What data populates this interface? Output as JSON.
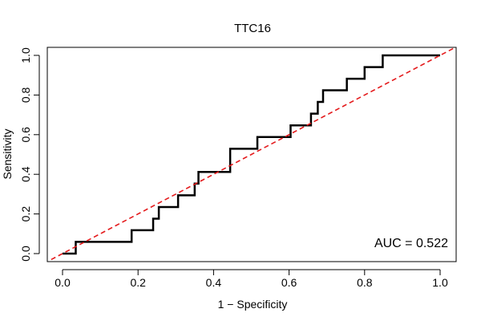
{
  "chart_data": {
    "type": "line",
    "title": "TTC16",
    "xlabel": "1 − Specificity",
    "ylabel": "Sensitivity",
    "xlim": [
      0,
      1
    ],
    "ylim": [
      0,
      1
    ],
    "x_ticks": [
      "0.0",
      "0.2",
      "0.4",
      "0.6",
      "0.8",
      "1.0"
    ],
    "y_ticks": [
      "0.0",
      "0.2",
      "0.4",
      "0.6",
      "0.8",
      "1.0"
    ],
    "grid": false,
    "annotation": "AUC = 0.522",
    "annotation_position": "bottom-right",
    "series": [
      {
        "style": "solid",
        "color": "#000000",
        "points": [
          [
            0.0,
            0.0
          ],
          [
            0.035,
            0.0
          ],
          [
            0.035,
            0.059
          ],
          [
            0.183,
            0.059
          ],
          [
            0.183,
            0.118
          ],
          [
            0.24,
            0.118
          ],
          [
            0.24,
            0.176
          ],
          [
            0.255,
            0.176
          ],
          [
            0.255,
            0.235
          ],
          [
            0.306,
            0.235
          ],
          [
            0.306,
            0.294
          ],
          [
            0.35,
            0.294
          ],
          [
            0.35,
            0.353
          ],
          [
            0.36,
            0.353
          ],
          [
            0.36,
            0.412
          ],
          [
            0.444,
            0.412
          ],
          [
            0.444,
            0.529
          ],
          [
            0.516,
            0.529
          ],
          [
            0.516,
            0.588
          ],
          [
            0.604,
            0.588
          ],
          [
            0.604,
            0.647
          ],
          [
            0.658,
            0.647
          ],
          [
            0.658,
            0.706
          ],
          [
            0.676,
            0.706
          ],
          [
            0.676,
            0.765
          ],
          [
            0.69,
            0.765
          ],
          [
            0.69,
            0.824
          ],
          [
            0.753,
            0.824
          ],
          [
            0.753,
            0.882
          ],
          [
            0.8,
            0.882
          ],
          [
            0.8,
            0.941
          ],
          [
            0.848,
            0.941
          ],
          [
            0.848,
            1.0
          ],
          [
            1.0,
            1.0
          ]
        ]
      },
      {
        "style": "dashed",
        "color": "#e41a1c",
        "points": [
          [
            -0.03,
            -0.03
          ],
          [
            1.05,
            1.05
          ]
        ]
      }
    ]
  }
}
